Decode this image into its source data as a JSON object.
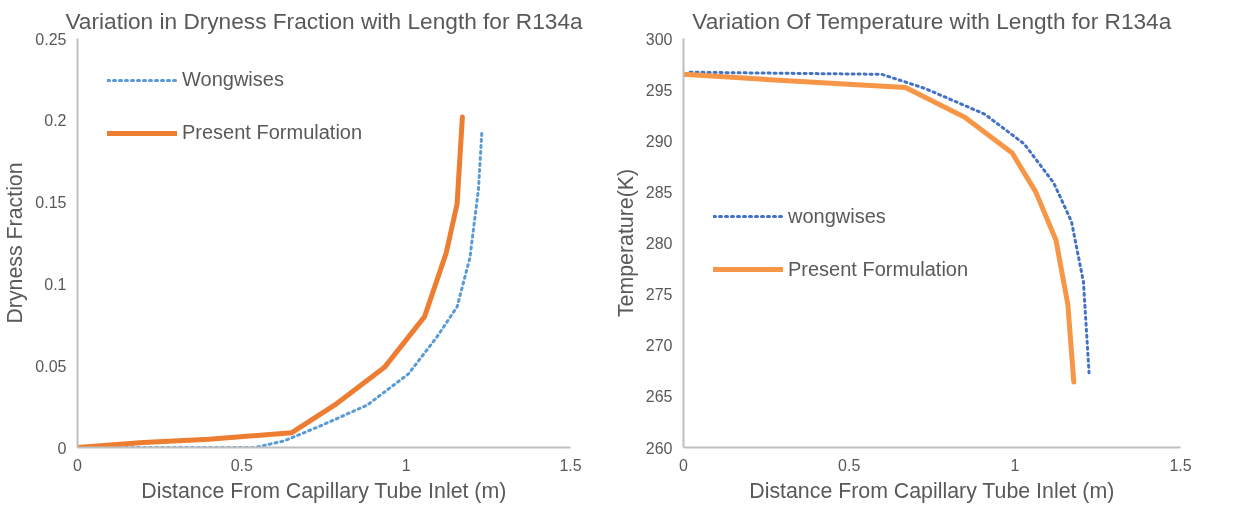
{
  "chart_data": [
    {
      "type": "line",
      "title": "Variation in Dryness Fraction with Length for R134a",
      "xlabel": "Distance From Capillary Tube Inlet (m)",
      "ylabel": "Dryness Fraction",
      "xlim": [
        0,
        1.5
      ],
      "xticks": [
        0,
        0.5,
        1,
        1.5
      ],
      "ylim": [
        0,
        0.25
      ],
      "yticks": [
        0,
        0.05,
        0.1,
        0.15,
        0.2,
        0.25
      ],
      "grid": false,
      "legend": "top left",
      "series": [
        {
          "name": "Wongwises",
          "color": "#5b9bd5",
          "line_style": "dotted",
          "x": [
            0,
            0.2,
            0.4,
            0.54,
            0.628,
            0.737,
            0.882,
            1.007,
            1.095,
            1.155,
            1.194,
            1.22,
            1.23
          ],
          "values": [
            0,
            0,
            0,
            0,
            0.004,
            0.013,
            0.026,
            0.045,
            0.068,
            0.086,
            0.116,
            0.158,
            0.192
          ]
        },
        {
          "name": "Present Formulation",
          "color": "#ed7d31",
          "line_style": "solid",
          "x": [
            0,
            0.2,
            0.4,
            0.651,
            0.783,
            0.934,
            1.056,
            1.122,
            1.155,
            1.171
          ],
          "values": [
            0,
            0.003,
            0.005,
            0.009,
            0.026,
            0.049,
            0.08,
            0.119,
            0.149,
            0.202
          ]
        }
      ]
    },
    {
      "type": "line",
      "title": "Variation Of Temperature with Length for R134a",
      "xlabel": "Distance From Capillary Tube Inlet (m)",
      "ylabel": "Temperature(K)",
      "xlim": [
        0,
        1.5
      ],
      "xticks": [
        0,
        0.5,
        1,
        1.5
      ],
      "ylim": [
        260,
        300
      ],
      "yticks": [
        260,
        265,
        270,
        275,
        280,
        285,
        290,
        295,
        300
      ],
      "grid": false,
      "legend": "left",
      "series": [
        {
          "name": "wongwises",
          "color": "#4472c4",
          "line_style": "dotted",
          "x": [
            0.02,
            0.3,
            0.598,
            0.73,
            0.909,
            1.028,
            1.117,
            1.171,
            1.207,
            1.224
          ],
          "values": [
            296.7,
            296.6,
            296.5,
            295.1,
            292.6,
            289.7,
            285.9,
            282.1,
            276.2,
            267.3
          ]
        },
        {
          "name": "Present Formulation",
          "color": "#f79646",
          "line_style": "solid",
          "x": [
            0,
            0.3,
            0.67,
            0.849,
            0.992,
            1.063,
            1.124,
            1.16,
            1.178
          ],
          "values": [
            296.5,
            295.9,
            295.2,
            292.3,
            288.8,
            285.0,
            280.3,
            274.0,
            266.4
          ]
        }
      ]
    }
  ]
}
